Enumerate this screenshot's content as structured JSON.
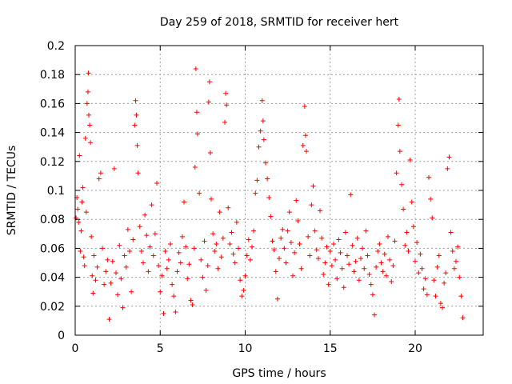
{
  "chart_data": {
    "type": "scatter",
    "title": "Day 259 of 2018, SRMTID for receiver hert",
    "xlabel": "GPS time / hours",
    "ylabel": "SRMTID / TECUs",
    "xlim": [
      0,
      24
    ],
    "ylim": [
      0,
      0.2
    ],
    "x_ticks": [
      0,
      5,
      10,
      15,
      20
    ],
    "x_tick_labels": [
      "0",
      "5",
      "10",
      "15",
      "20"
    ],
    "y_ticks": [
      0,
      0.02,
      0.04,
      0.06,
      0.08,
      0.1,
      0.12,
      0.14,
      0.16,
      0.18,
      0.2
    ],
    "y_tick_labels": [
      "0",
      "0.02",
      "0.04",
      "0.06",
      "0.08",
      "0.1",
      "0.12",
      "0.14",
      "0.16",
      "0.18",
      "0.2"
    ],
    "grid": true,
    "marker": "+",
    "color": "#ff0000",
    "series": [
      {
        "name": "SRMTID",
        "points": [
          [
            0.05,
            0.081
          ],
          [
            0.1,
            0.095
          ],
          [
            0.15,
            0.087
          ],
          [
            0.2,
            0.078
          ],
          [
            0.25,
            0.124
          ],
          [
            0.3,
            0.058
          ],
          [
            0.35,
            0.072
          ],
          [
            0.4,
            0.092
          ],
          [
            0.45,
            0.102
          ],
          [
            0.5,
            0.054
          ],
          [
            0.55,
            0.048
          ],
          [
            0.6,
            0.136
          ],
          [
            0.65,
            0.085
          ],
          [
            0.7,
            0.16
          ],
          [
            0.75,
            0.168
          ],
          [
            0.78,
            0.181
          ],
          [
            0.8,
            0.152
          ],
          [
            0.85,
            0.145
          ],
          [
            0.9,
            0.133
          ],
          [
            0.95,
            0.068
          ],
          [
            1.0,
            0.041
          ],
          [
            1.05,
            0.029
          ],
          [
            1.1,
            0.055
          ],
          [
            1.2,
            0.038
          ],
          [
            1.3,
            0.047
          ],
          [
            1.4,
            0.108
          ],
          [
            1.5,
            0.112
          ],
          [
            1.6,
            0.06
          ],
          [
            1.7,
            0.035
          ],
          [
            1.8,
            0.044
          ],
          [
            1.9,
            0.052
          ],
          [
            2.0,
            0.011
          ],
          [
            2.1,
            0.036
          ],
          [
            2.2,
            0.051
          ],
          [
            2.3,
            0.115
          ],
          [
            2.4,
            0.043
          ],
          [
            2.5,
            0.028
          ],
          [
            2.6,
            0.062
          ],
          [
            2.7,
            0.039
          ],
          [
            2.8,
            0.019
          ],
          [
            2.9,
            0.055
          ],
          [
            3.0,
            0.047
          ],
          [
            3.1,
            0.073
          ],
          [
            3.2,
            0.058
          ],
          [
            3.3,
            0.03
          ],
          [
            3.4,
            0.066
          ],
          [
            3.5,
            0.145
          ],
          [
            3.55,
            0.162
          ],
          [
            3.6,
            0.152
          ],
          [
            3.65,
            0.131
          ],
          [
            3.7,
            0.112
          ],
          [
            3.8,
            0.075
          ],
          [
            3.9,
            0.058
          ],
          [
            4.0,
            0.05
          ],
          [
            4.1,
            0.083
          ],
          [
            4.2,
            0.069
          ],
          [
            4.3,
            0.044
          ],
          [
            4.4,
            0.061
          ],
          [
            4.5,
            0.09
          ],
          [
            4.6,
            0.055
          ],
          [
            4.7,
            0.07
          ],
          [
            4.8,
            0.105
          ],
          [
            4.9,
            0.048
          ],
          [
            5.0,
            0.03
          ],
          [
            5.1,
            0.041
          ],
          [
            5.2,
            0.015
          ],
          [
            5.3,
            0.058
          ],
          [
            5.4,
            0.046
          ],
          [
            5.5,
            0.052
          ],
          [
            5.6,
            0.063
          ],
          [
            5.7,
            0.035
          ],
          [
            5.8,
            0.027
          ],
          [
            5.9,
            0.016
          ],
          [
            6.0,
            0.044
          ],
          [
            6.1,
            0.057
          ],
          [
            6.2,
            0.05
          ],
          [
            6.3,
            0.068
          ],
          [
            6.4,
            0.092
          ],
          [
            6.5,
            0.061
          ],
          [
            6.6,
            0.039
          ],
          [
            6.7,
            0.049
          ],
          [
            6.8,
            0.024
          ],
          [
            6.9,
            0.021
          ],
          [
            7.0,
            0.06
          ],
          [
            7.05,
            0.116
          ],
          [
            7.1,
            0.184
          ],
          [
            7.15,
            0.154
          ],
          [
            7.2,
            0.139
          ],
          [
            7.3,
            0.098
          ],
          [
            7.4,
            0.052
          ],
          [
            7.5,
            0.04
          ],
          [
            7.6,
            0.065
          ],
          [
            7.7,
            0.031
          ],
          [
            7.8,
            0.048
          ],
          [
            7.85,
            0.161
          ],
          [
            7.9,
            0.175
          ],
          [
            7.95,
            0.126
          ],
          [
            8.0,
            0.094
          ],
          [
            8.1,
            0.07
          ],
          [
            8.2,
            0.058
          ],
          [
            8.3,
            0.063
          ],
          [
            8.4,
            0.046
          ],
          [
            8.5,
            0.085
          ],
          [
            8.6,
            0.054
          ],
          [
            8.7,
            0.067
          ],
          [
            8.8,
            0.147
          ],
          [
            8.85,
            0.167
          ],
          [
            8.9,
            0.159
          ],
          [
            9.0,
            0.088
          ],
          [
            9.1,
            0.063
          ],
          [
            9.2,
            0.071
          ],
          [
            9.3,
            0.056
          ],
          [
            9.4,
            0.05
          ],
          [
            9.5,
            0.078
          ],
          [
            9.6,
            0.06
          ],
          [
            9.7,
            0.038
          ],
          [
            9.8,
            0.027
          ],
          [
            9.9,
            0.031
          ],
          [
            10.0,
            0.041
          ],
          [
            10.1,
            0.055
          ],
          [
            10.2,
            0.066
          ],
          [
            10.3,
            0.052
          ],
          [
            10.4,
            0.061
          ],
          [
            10.5,
            0.072
          ],
          [
            10.6,
            0.098
          ],
          [
            10.7,
            0.107
          ],
          [
            10.8,
            0.13
          ],
          [
            10.9,
            0.141
          ],
          [
            11.0,
            0.162
          ],
          [
            11.05,
            0.148
          ],
          [
            11.1,
            0.135
          ],
          [
            11.2,
            0.119
          ],
          [
            11.3,
            0.108
          ],
          [
            11.4,
            0.095
          ],
          [
            11.5,
            0.082
          ],
          [
            11.6,
            0.065
          ],
          [
            11.7,
            0.059
          ],
          [
            11.8,
            0.044
          ],
          [
            11.9,
            0.025
          ],
          [
            12.0,
            0.053
          ],
          [
            12.1,
            0.067
          ],
          [
            12.2,
            0.073
          ],
          [
            12.3,
            0.06
          ],
          [
            12.4,
            0.05
          ],
          [
            12.5,
            0.072
          ],
          [
            12.6,
            0.085
          ],
          [
            12.7,
            0.064
          ],
          [
            12.8,
            0.041
          ],
          [
            12.9,
            0.057
          ],
          [
            13.0,
            0.093
          ],
          [
            13.1,
            0.079
          ],
          [
            13.2,
            0.063
          ],
          [
            13.3,
            0.046
          ],
          [
            13.4,
            0.131
          ],
          [
            13.5,
            0.158
          ],
          [
            13.55,
            0.138
          ],
          [
            13.6,
            0.127
          ],
          [
            13.7,
            0.068
          ],
          [
            13.8,
            0.055
          ],
          [
            13.9,
            0.09
          ],
          [
            14.0,
            0.103
          ],
          [
            14.1,
            0.072
          ],
          [
            14.2,
            0.059
          ],
          [
            14.3,
            0.053
          ],
          [
            14.4,
            0.086
          ],
          [
            14.5,
            0.067
          ],
          [
            14.6,
            0.042
          ],
          [
            14.7,
            0.05
          ],
          [
            14.8,
            0.061
          ],
          [
            14.9,
            0.035
          ],
          [
            15.0,
            0.058
          ],
          [
            15.1,
            0.048
          ],
          [
            15.2,
            0.063
          ],
          [
            15.3,
            0.052
          ],
          [
            15.4,
            0.039
          ],
          [
            15.5,
            0.066
          ],
          [
            15.6,
            0.057
          ],
          [
            15.7,
            0.046
          ],
          [
            15.8,
            0.033
          ],
          [
            15.9,
            0.071
          ],
          [
            16.0,
            0.055
          ],
          [
            16.1,
            0.049
          ],
          [
            16.2,
            0.097
          ],
          [
            16.3,
            0.062
          ],
          [
            16.4,
            0.044
          ],
          [
            16.5,
            0.051
          ],
          [
            16.6,
            0.067
          ],
          [
            16.7,
            0.038
          ],
          [
            16.8,
            0.053
          ],
          [
            16.9,
            0.06
          ],
          [
            17.0,
            0.046
          ],
          [
            17.1,
            0.072
          ],
          [
            17.2,
            0.055
          ],
          [
            17.3,
            0.042
          ],
          [
            17.4,
            0.035
          ],
          [
            17.5,
            0.028
          ],
          [
            17.6,
            0.014
          ],
          [
            17.7,
            0.047
          ],
          [
            17.8,
            0.058
          ],
          [
            17.9,
            0.063
          ],
          [
            18.0,
            0.05
          ],
          [
            18.1,
            0.044
          ],
          [
            18.2,
            0.056
          ],
          [
            18.3,
            0.041
          ],
          [
            18.4,
            0.068
          ],
          [
            18.5,
            0.052
          ],
          [
            18.6,
            0.037
          ],
          [
            18.7,
            0.048
          ],
          [
            18.8,
            0.065
          ],
          [
            18.9,
            0.112
          ],
          [
            19.0,
            0.145
          ],
          [
            19.05,
            0.163
          ],
          [
            19.1,
            0.127
          ],
          [
            19.2,
            0.104
          ],
          [
            19.3,
            0.087
          ],
          [
            19.4,
            0.062
          ],
          [
            19.5,
            0.071
          ],
          [
            19.6,
            0.058
          ],
          [
            19.7,
            0.121
          ],
          [
            19.8,
            0.092
          ],
          [
            19.9,
            0.075
          ],
          [
            20.0,
            0.051
          ],
          [
            20.1,
            0.064
          ],
          [
            20.2,
            0.043
          ],
          [
            20.3,
            0.056
          ],
          [
            20.4,
            0.046
          ],
          [
            20.5,
            0.032
          ],
          [
            20.6,
            0.039
          ],
          [
            20.7,
            0.028
          ],
          [
            20.8,
            0.109
          ],
          [
            20.9,
            0.094
          ],
          [
            21.0,
            0.081
          ],
          [
            21.1,
            0.038
          ],
          [
            21.2,
            0.027
          ],
          [
            21.3,
            0.047
          ],
          [
            21.4,
            0.055
          ],
          [
            21.5,
            0.022
          ],
          [
            21.6,
            0.019
          ],
          [
            21.7,
            0.036
          ],
          [
            21.8,
            0.043
          ],
          [
            21.9,
            0.115
          ],
          [
            22.0,
            0.123
          ],
          [
            22.1,
            0.071
          ],
          [
            22.2,
            0.058
          ],
          [
            22.3,
            0.046
          ],
          [
            22.4,
            0.051
          ],
          [
            22.5,
            0.061
          ],
          [
            22.6,
            0.04
          ],
          [
            22.7,
            0.027
          ],
          [
            22.8,
            0.012
          ]
        ]
      }
    ]
  }
}
